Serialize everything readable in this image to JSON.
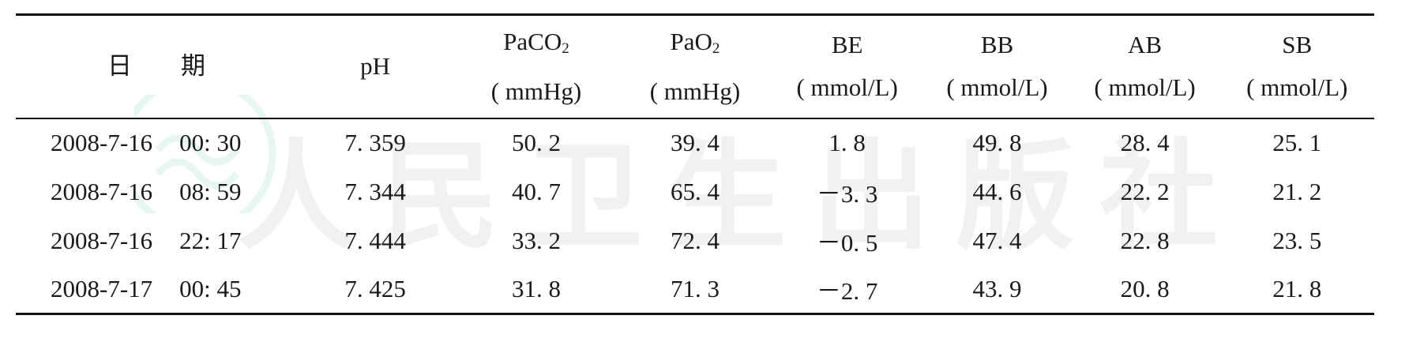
{
  "watermark": {
    "text": "人民卫生出版社"
  },
  "table": {
    "headers": [
      {
        "lines": [
          "日",
          "期"
        ]
      },
      {
        "lines": [
          "pH"
        ]
      },
      {
        "base": "PaCO",
        "sub": "2",
        "unit": "( mmHg)"
      },
      {
        "base": "PaO",
        "sub": "2",
        "unit": "( mmHg)"
      },
      {
        "base": "BE",
        "sub": "",
        "unit": "( mmol/L)"
      },
      {
        "base": "BB",
        "sub": "",
        "unit": "( mmol/L)"
      },
      {
        "base": "AB",
        "sub": "",
        "unit": "( mmol/L)"
      },
      {
        "base": "SB",
        "sub": "",
        "unit": "( mmol/L)"
      }
    ],
    "rows": [
      {
        "date": "2008-7-16",
        "time": "00: 30",
        "ph": "7. 359",
        "paco2": "50. 2",
        "pao2": "39. 4",
        "be": "1. 8",
        "bb": "49. 8",
        "ab": "28. 4",
        "sb": "25. 1"
      },
      {
        "date": "2008-7-16",
        "time": "08: 59",
        "ph": "7. 344",
        "paco2": "40. 7",
        "pao2": "65. 4",
        "be": "－3. 3",
        "bb": "44. 6",
        "ab": "22. 2",
        "sb": "21. 2"
      },
      {
        "date": "2008-7-16",
        "time": "22: 17",
        "ph": "7. 444",
        "paco2": "33. 2",
        "pao2": "72. 4",
        "be": "－0. 5",
        "bb": "47. 4",
        "ab": "22. 8",
        "sb": "23. 5"
      },
      {
        "date": "2008-7-17",
        "time": "00: 45",
        "ph": "7. 425",
        "paco2": "31. 8",
        "pao2": "71. 3",
        "be": "－2. 7",
        "bb": "43. 9",
        "ab": "20. 8",
        "sb": "21. 8"
      }
    ]
  }
}
